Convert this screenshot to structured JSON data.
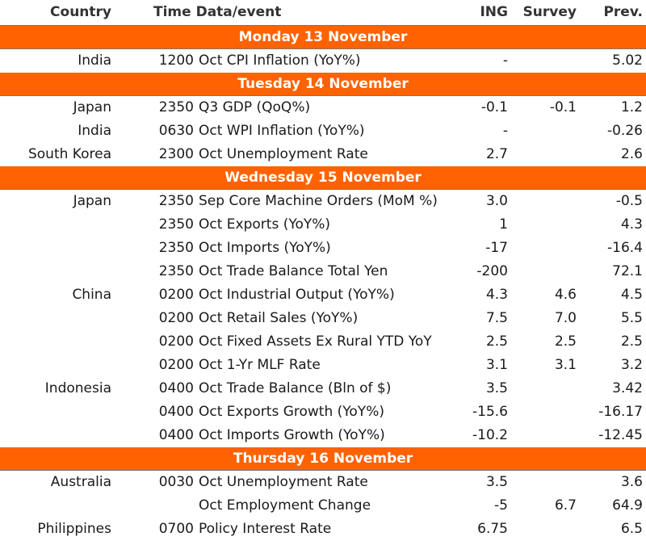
{
  "header": {
    "country": "Country",
    "time": "Time",
    "event": "Data/event",
    "ing": "ING",
    "survey": "Survey",
    "prev": "Prev."
  },
  "sections": [
    {
      "day": "Monday 13 November",
      "rows": [
        {
          "country": "India",
          "time": "1200",
          "event": "Oct CPI Inflation (YoY%)",
          "ing": "-",
          "survey": "",
          "prev": "5.02"
        }
      ]
    },
    {
      "day": "Tuesday 14 November",
      "rows": [
        {
          "country": "Japan",
          "time": "2350",
          "event": "Q3 GDP (QoQ%)",
          "ing": "-0.1",
          "survey": "-0.1",
          "prev": "1.2"
        },
        {
          "country": "India",
          "time": "0630",
          "event": "Oct WPI Inflation (YoY%)",
          "ing": "-",
          "survey": "",
          "prev": "-0.26"
        },
        {
          "country": "South Korea",
          "time": "2300",
          "event": "Oct Unemployment Rate",
          "ing": "2.7",
          "survey": "",
          "prev": "2.6"
        }
      ]
    },
    {
      "day": "Wednesday 15 November",
      "rows": [
        {
          "country": "Japan",
          "time": "2350",
          "event": "Sep Core Machine Orders (MoM %)",
          "ing": "3.0",
          "survey": "",
          "prev": "-0.5"
        },
        {
          "country": "",
          "time": "2350",
          "event": "Oct Exports (YoY%)",
          "ing": "1",
          "survey": "",
          "prev": "4.3"
        },
        {
          "country": "",
          "time": "2350",
          "event": "Oct Imports (YoY%)",
          "ing": "-17",
          "survey": "",
          "prev": "-16.4"
        },
        {
          "country": "",
          "time": "2350",
          "event": "Oct Trade Balance Total Yen",
          "ing": "-200",
          "survey": "",
          "prev": "72.1"
        },
        {
          "country": "China",
          "time": "0200",
          "event": "Oct Industrial Output (YoY%)",
          "ing": "4.3",
          "survey": "4.6",
          "prev": "4.5"
        },
        {
          "country": "",
          "time": "0200",
          "event": "Oct Retail Sales (YoY%)",
          "ing": "7.5",
          "survey": "7.0",
          "prev": "5.5"
        },
        {
          "country": "",
          "time": "0200",
          "event": "Oct Fixed Assets Ex Rural YTD YoY",
          "ing": "2.5",
          "survey": "2.5",
          "prev": "2.5"
        },
        {
          "country": "",
          "time": "0200",
          "event": "Oct 1-Yr MLF Rate",
          "ing": "3.1",
          "survey": "3.1",
          "prev": "3.2"
        },
        {
          "country": "Indonesia",
          "time": "0400",
          "event": "Oct Trade Balance (Bln of $)",
          "ing": "3.5",
          "survey": "",
          "prev": "3.42"
        },
        {
          "country": "",
          "time": "0400",
          "event": "Oct Exports Growth (YoY%)",
          "ing": "-15.6",
          "survey": "",
          "prev": "-16.17"
        },
        {
          "country": "",
          "time": "0400",
          "event": "Oct Imports Growth (YoY%)",
          "ing": "-10.2",
          "survey": "",
          "prev": "-12.45"
        }
      ]
    },
    {
      "day": "Thursday 16 November",
      "rows": [
        {
          "country": "Australia",
          "time": "0030",
          "event": "Oct Unemployment Rate",
          "ing": "3.5",
          "survey": "",
          "prev": "3.6"
        },
        {
          "country": "",
          "time": "",
          "event": "Oct Employment Change",
          "ing": "-5",
          "survey": "6.7",
          "prev": "64.9"
        },
        {
          "country": "Philippines",
          "time": "0700",
          "event": "Policy Interest Rate",
          "ing": "6.75",
          "survey": "",
          "prev": "6.5"
        }
      ]
    }
  ]
}
